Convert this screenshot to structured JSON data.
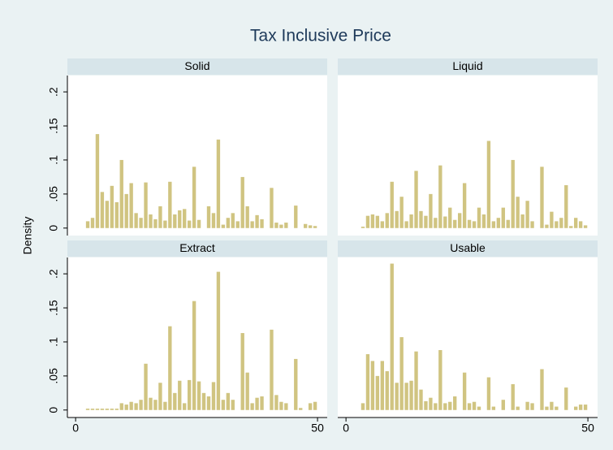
{
  "chart_data": {
    "type": "histogram",
    "title": "Tax Inclusive Price",
    "ylabel": "Density",
    "color": "#d0c481",
    "bins": [
      2,
      3,
      4,
      5,
      6,
      7,
      8,
      9,
      10,
      11,
      12,
      13,
      14,
      15,
      16,
      17,
      18,
      19,
      20,
      21,
      22,
      23,
      24,
      25,
      26,
      27,
      28,
      29,
      30,
      31,
      32,
      33,
      34,
      35,
      36,
      37,
      38,
      39,
      40,
      41,
      42,
      43,
      44,
      45,
      46,
      47,
      48,
      49,
      50
    ],
    "xlim": [
      -1.7,
      52
    ],
    "xticks": [
      0,
      50
    ],
    "ylim": [
      -0.011,
      0.224
    ],
    "yticks": [
      0,
      {
        "value": 0.05,
        "label": ".05"
      },
      {
        "value": 0.1,
        "label": ".1"
      },
      {
        "value": 0.15,
        "label": ".15"
      },
      {
        "value": 0.2,
        "label": ".2"
      }
    ],
    "panels": [
      {
        "name": "Solid",
        "values": [
          0.01,
          0.015,
          0.138,
          0.053,
          0.04,
          0.062,
          0.038,
          0.1,
          0.05,
          0.066,
          0.022,
          0.015,
          0.067,
          0.02,
          0.013,
          0.032,
          0.011,
          0.068,
          0.02,
          0.026,
          0.028,
          0.011,
          0.09,
          0.012,
          0,
          0.032,
          0.022,
          0.13,
          0.005,
          0.015,
          0.022,
          0.01,
          0.075,
          0.032,
          0.01,
          0.019,
          0.013,
          0,
          0.059,
          0.008,
          0.005,
          0.008,
          0,
          0.033,
          0,
          0.006,
          0.004,
          0.003
        ]
      },
      {
        "name": "Liquid",
        "values": [
          0,
          0.002,
          0.018,
          0.02,
          0.018,
          0.01,
          0.022,
          0.068,
          0.025,
          0.046,
          0.01,
          0.02,
          0.084,
          0.025,
          0.018,
          0.05,
          0.015,
          0.092,
          0.017,
          0.03,
          0.012,
          0.022,
          0.066,
          0.012,
          0.01,
          0.03,
          0.02,
          0.128,
          0.01,
          0.015,
          0.03,
          0.012,
          0.1,
          0.046,
          0.02,
          0.04,
          0.01,
          0,
          0.09,
          0.005,
          0.024,
          0.01,
          0.015,
          0.063,
          0.003,
          0.015,
          0.01,
          0.004
        ]
      },
      {
        "name": "Extract",
        "values": [
          0.002,
          0.002,
          0.002,
          0.002,
          0.002,
          0.002,
          0.002,
          0.01,
          0.008,
          0.012,
          0.01,
          0.015,
          0.068,
          0.018,
          0.015,
          0.04,
          0.012,
          0.123,
          0.025,
          0.043,
          0.01,
          0.044,
          0.16,
          0.042,
          0.025,
          0.02,
          0.041,
          0.203,
          0.015,
          0.025,
          0.015,
          0,
          0.113,
          0.055,
          0.01,
          0.018,
          0.02,
          0,
          0.118,
          0.022,
          0.012,
          0.01,
          0,
          0.075,
          0.003,
          0,
          0.01,
          0.012
        ]
      },
      {
        "name": "Usable",
        "values": [
          0,
          0.01,
          0.082,
          0.072,
          0.05,
          0.072,
          0.057,
          0.215,
          0.04,
          0.107,
          0.04,
          0.043,
          0.086,
          0.03,
          0.013,
          0.018,
          0.01,
          0.088,
          0.01,
          0.012,
          0.02,
          0,
          0.055,
          0.01,
          0.012,
          0.005,
          0,
          0.048,
          0.005,
          0,
          0.015,
          0,
          0.038,
          0.005,
          0,
          0.012,
          0.01,
          0,
          0.06,
          0.005,
          0.012,
          0.005,
          0,
          0.033,
          0,
          0.005,
          0.008,
          0.008
        ]
      }
    ]
  }
}
